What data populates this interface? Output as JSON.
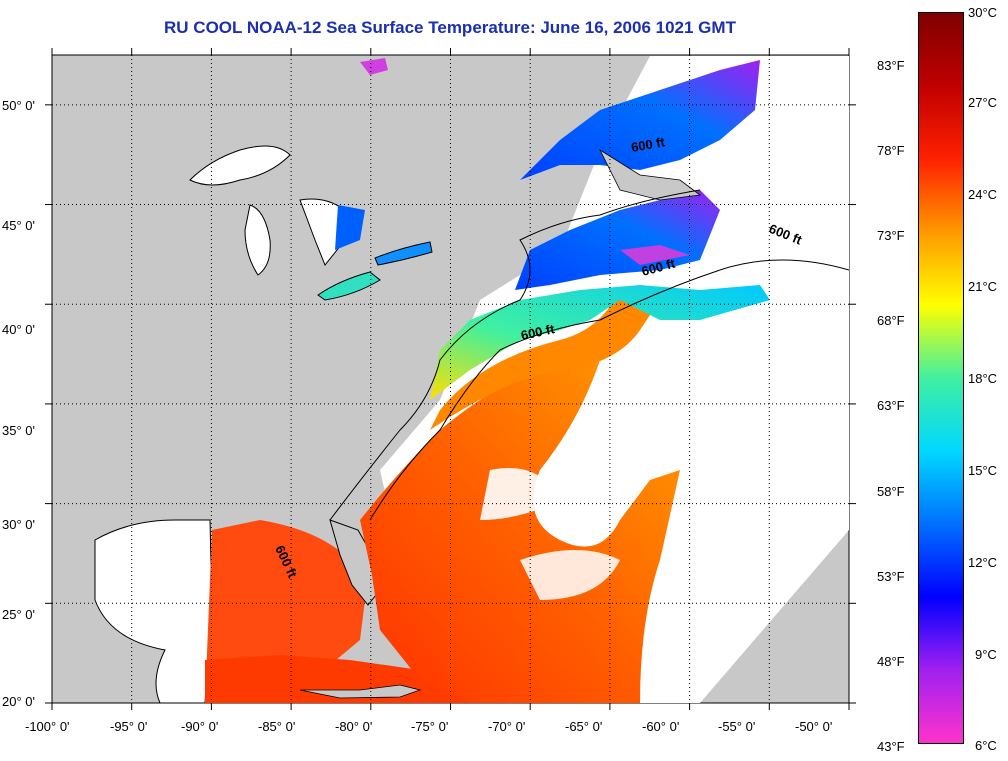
{
  "title": "RU COOL  NOAA-12  Sea Surface Temperature:  June 16, 2006 1021 GMT",
  "map": {
    "lon_range": [
      -100,
      -50
    ],
    "lat_range": [
      20,
      52.5
    ],
    "lat_ticks": [
      "50° 0'",
      "45° 0'",
      "40° 0'",
      "35° 0'",
      "30° 0'",
      "25° 0'",
      "20° 0'"
    ],
    "lon_ticks": [
      "-100° 0'",
      "-95° 0'",
      "-90° 0'",
      "-85° 0'",
      "-80° 0'",
      "-75° 0'",
      "-70° 0'",
      "-65° 0'",
      "-60° 0'",
      "-55° 0'",
      "-50° 0'"
    ],
    "grid": "dotted",
    "land_color": "#c8c8c8",
    "no_data_color": "#ffffff",
    "contour_labels": [
      "600 ft",
      "600 ft",
      "600 ft",
      "600 ft",
      "600 ft"
    ]
  },
  "colorbar": {
    "celsius_labels": [
      "30°C",
      "27°C",
      "24°C",
      "21°C",
      "18°C",
      "15°C",
      "12°C",
      "9°C",
      "6°C"
    ],
    "fahrenheit_labels": [
      "83°F",
      "78°F",
      "73°F",
      "68°F",
      "63°F",
      "58°F",
      "53°F",
      "48°F",
      "43°F"
    ],
    "range_c": [
      6,
      30
    ],
    "stops": [
      "#ff33cc",
      "#a020f0",
      "#0000ff",
      "#0070ff",
      "#00d8ff",
      "#40f0a0",
      "#ffff00",
      "#ff9900",
      "#ff2000",
      "#c00000",
      "#800000"
    ]
  }
}
